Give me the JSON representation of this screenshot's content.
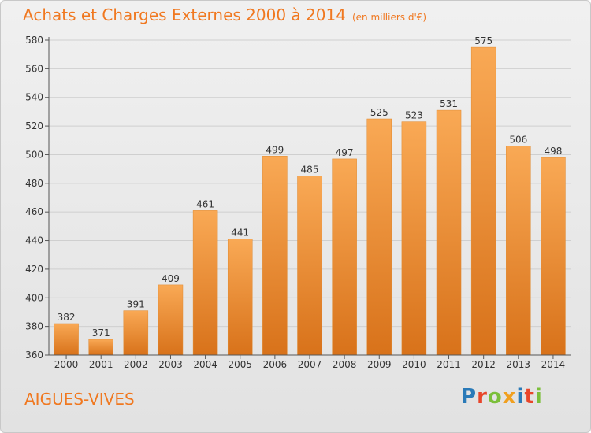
{
  "title": "Achats et Charges Externes 2000 à 2014",
  "subtitle": "(en milliers d'€)",
  "place_name": "AIGUES-VIVES",
  "logo": {
    "text": "Proxiti",
    "colors": [
      "#2a7ab8",
      "#e8452a",
      "#7bbf3a",
      "#f0a020",
      "#2a7ab8",
      "#e8452a",
      "#7bbf3a"
    ]
  },
  "colors": {
    "bar_top": "#f9a955",
    "bar_bottom": "#d8721a",
    "accent": "#f07820"
  },
  "chart_data": {
    "type": "bar",
    "title": "Achats et Charges Externes 2000 à 2014",
    "xlabel": "",
    "ylabel": "",
    "categories": [
      "2000",
      "2001",
      "2002",
      "2003",
      "2004",
      "2005",
      "2006",
      "2007",
      "2008",
      "2009",
      "2010",
      "2011",
      "2012",
      "2013",
      "2014"
    ],
    "values": [
      382,
      371,
      391,
      409,
      461,
      441,
      499,
      485,
      497,
      525,
      523,
      531,
      575,
      506,
      498
    ],
    "ylim": [
      360,
      580
    ],
    "yticks": [
      360,
      380,
      400,
      420,
      440,
      460,
      480,
      500,
      520,
      540,
      560,
      580
    ],
    "grid": true,
    "legend": "none"
  }
}
